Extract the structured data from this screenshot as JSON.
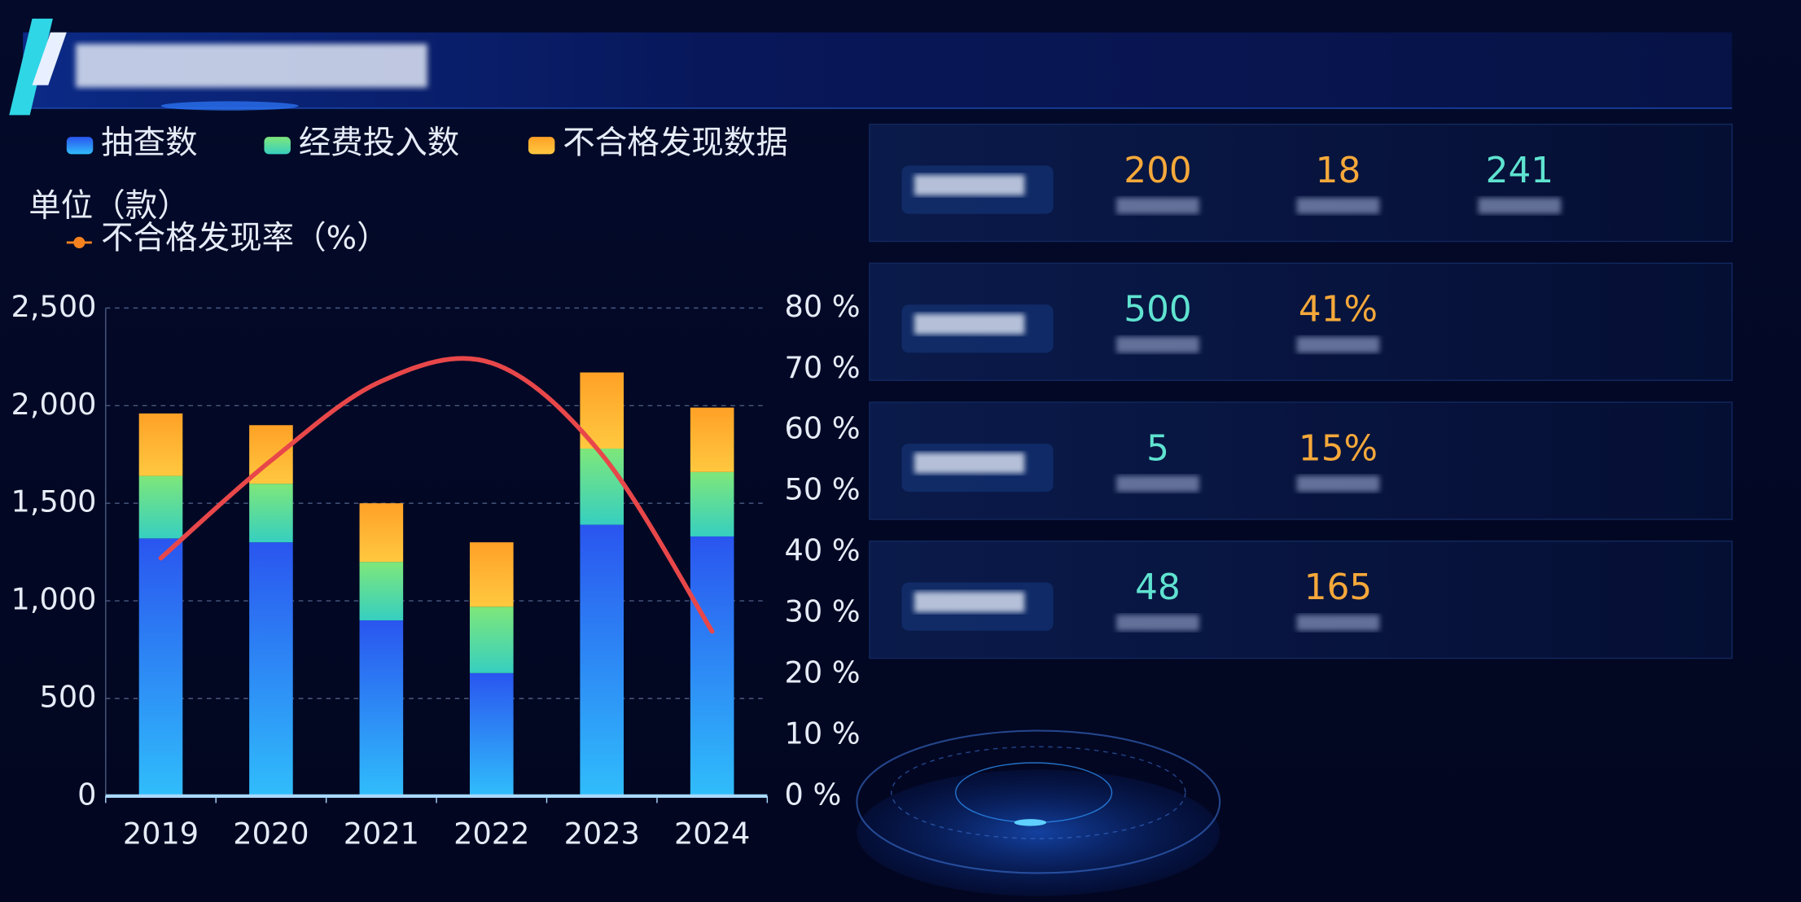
{
  "chart_data": {
    "type": "bar",
    "stacked": true,
    "unit_label": "单位（款）",
    "categories": [
      "2019",
      "2020",
      "2021",
      "2022",
      "2023",
      "2024"
    ],
    "series": [
      {
        "name": "抽查数",
        "color": "#2a55ef",
        "color_bottom": "#30bdfb",
        "values": [
          1320,
          1300,
          900,
          630,
          1390,
          1330
        ]
      },
      {
        "name": "经费投入数",
        "color": "#7ee77a",
        "color_bottom": "#36cfc0",
        "values": [
          320,
          300,
          300,
          340,
          390,
          330
        ]
      },
      {
        "name": "不合格发现数据",
        "color": "#ffa126",
        "color_bottom": "#ffc83f",
        "values": [
          320,
          300,
          300,
          330,
          390,
          330
        ]
      },
      {
        "name": "不合格发现率（%）",
        "type": "line",
        "axis": "y2",
        "color": "#e8474a",
        "marker_color": "#f5821f",
        "values": [
          39,
          55,
          68,
          71,
          56,
          27
        ]
      }
    ],
    "ylim": [
      0,
      2500
    ],
    "yticks": [
      0,
      500,
      {
        "value": 1000,
        "label": "1,000"
      },
      {
        "value": 1500,
        "label": "1,500"
      },
      {
        "value": 2000,
        "label": "2,000"
      },
      {
        "value": 2500,
        "label": "2,500"
      }
    ],
    "y2lim": [
      0,
      80
    ],
    "y2ticks": [
      {
        "value": 0,
        "label": "0 %"
      },
      {
        "value": 10,
        "label": "10 %"
      },
      {
        "value": 20,
        "label": "20 %"
      },
      {
        "value": 30,
        "label": "30 %"
      },
      {
        "value": 40,
        "label": "40 %"
      },
      {
        "value": 50,
        "label": "50 %"
      },
      {
        "value": 60,
        "label": "60 %"
      },
      {
        "value": 70,
        "label": "70 %"
      },
      {
        "value": 80,
        "label": "80 %"
      }
    ],
    "grid": true
  },
  "panels": [
    {
      "stats": [
        {
          "text": "200",
          "color": "#f5a83a"
        },
        {
          "text": "18",
          "color": "#f5a83a"
        },
        {
          "text": "241",
          "color": "#5fe3d0"
        }
      ]
    },
    {
      "stats": [
        {
          "text": "500",
          "color": "#5fe3d0"
        },
        {
          "text": "41%",
          "color": "#f5a83a"
        }
      ]
    },
    {
      "stats": [
        {
          "text": "5",
          "color": "#5fe3d0"
        },
        {
          "text": "15%",
          "color": "#f5a83a"
        }
      ]
    },
    {
      "stats": [
        {
          "text": "48",
          "color": "#5fe3d0"
        },
        {
          "text": "165",
          "color": "#f5a83a"
        }
      ]
    }
  ]
}
